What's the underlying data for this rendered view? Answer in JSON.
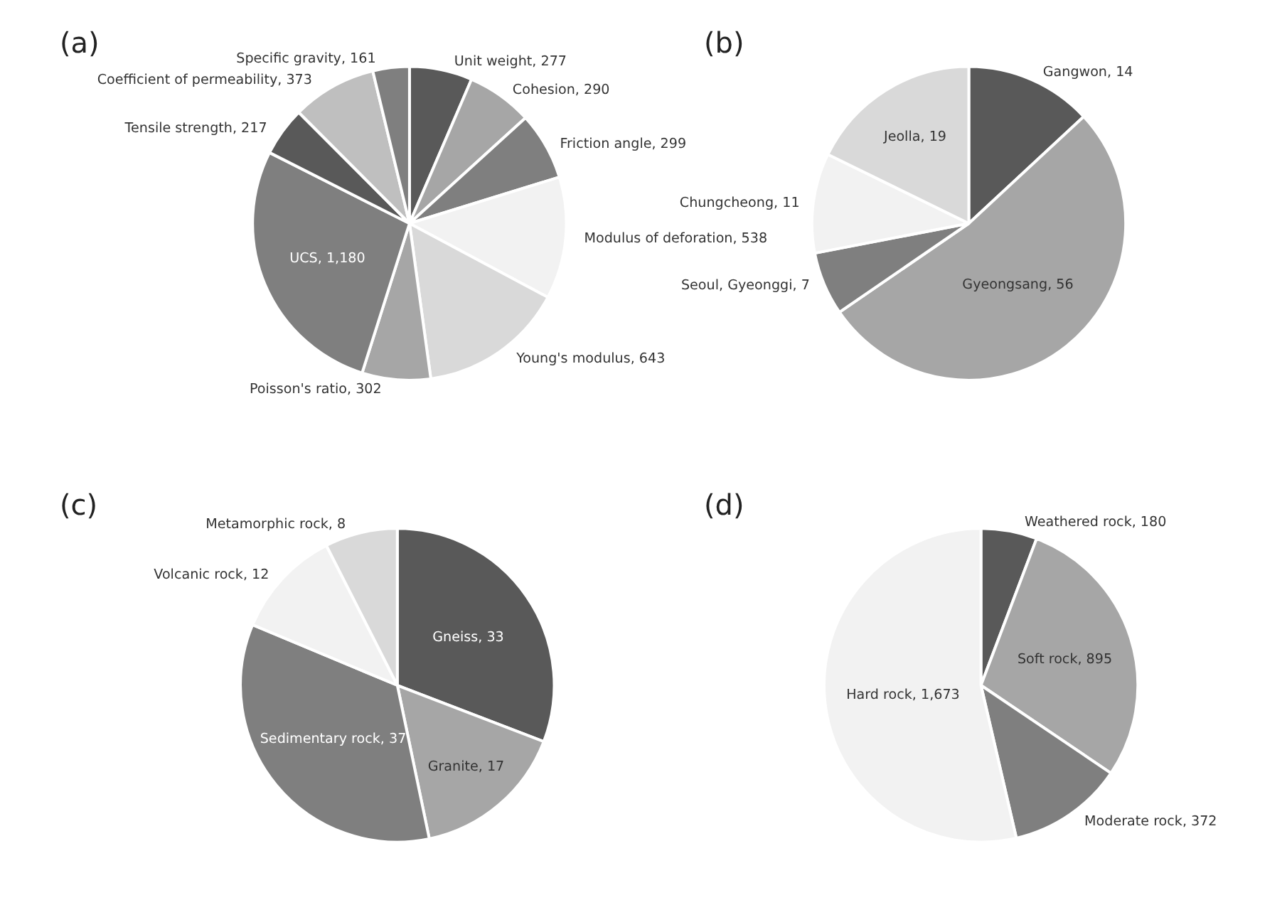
{
  "chart_data": [
    {
      "type": "pie",
      "title": "(a)",
      "categories": [
        "Unit weight",
        "Cohesion",
        "Friction angle",
        "Modulus of deforation",
        "Young's modulus",
        "Poisson's ratio",
        "UCS",
        "Tensile strength",
        "Coefficient of permeability",
        "Specific gravity"
      ],
      "values": [
        277,
        290,
        299,
        538,
        643,
        302,
        1180,
        217,
        373,
        161
      ],
      "value_labels": [
        "277",
        "290",
        "299",
        "538",
        "643",
        "302",
        "1,180",
        "217",
        "373",
        "161"
      ],
      "colors": [
        "#595959",
        "#a6a6a6",
        "#7f7f7f",
        "#f2f2f2",
        "#d9d9d9",
        "#a6a6a6",
        "#7f7f7f",
        "#595959",
        "#bfbfbf",
        "#7f7f7f"
      ],
      "legend": false
    },
    {
      "type": "pie",
      "title": "(b)",
      "categories": [
        "Gangwon",
        "Gyeongsang",
        "Seoul, Gyeonggi",
        "Chungcheong",
        "Jeolla"
      ],
      "values": [
        14,
        56,
        7,
        11,
        19
      ],
      "value_labels": [
        "14",
        "56",
        "7",
        "11",
        "19"
      ],
      "colors": [
        "#595959",
        "#a6a6a6",
        "#7f7f7f",
        "#f2f2f2",
        "#d9d9d9"
      ],
      "legend": false
    },
    {
      "type": "pie",
      "title": "(c)",
      "categories": [
        "Gneiss",
        "Granite",
        "Sedimentary rock",
        "Volcanic rock",
        "Metamorphic rock"
      ],
      "values": [
        33,
        17,
        37,
        12,
        8
      ],
      "value_labels": [
        "33",
        "17",
        "37",
        "12",
        "8"
      ],
      "colors": [
        "#595959",
        "#a6a6a6",
        "#7f7f7f",
        "#f2f2f2",
        "#d9d9d9"
      ],
      "legend": false
    },
    {
      "type": "pie",
      "title": "(d)",
      "categories": [
        "Weathered rock",
        "Soft rock",
        "Moderate rock",
        "Hard rock"
      ],
      "values": [
        180,
        895,
        372,
        1673
      ],
      "value_labels": [
        "180",
        "895",
        "372",
        "1,673"
      ],
      "colors": [
        "#595959",
        "#a6a6a6",
        "#7f7f7f",
        "#f2f2f2"
      ],
      "legend": false
    }
  ]
}
